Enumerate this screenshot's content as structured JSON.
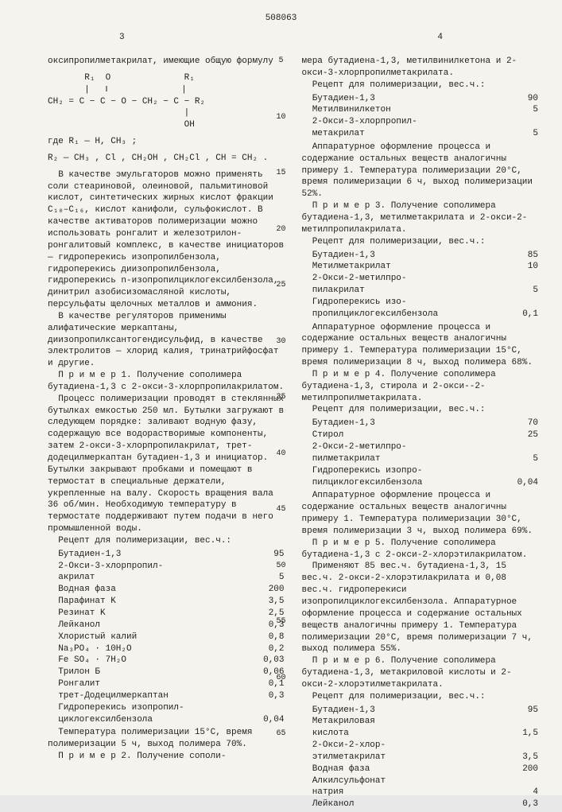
{
  "doc_number": "508063",
  "page_left": "3",
  "page_right": "4",
  "linenums": [
    "5",
    "10",
    "15",
    "20",
    "25",
    "30",
    "35",
    "40",
    "45",
    "50",
    "55",
    "60",
    "65"
  ],
  "left": {
    "p1": "оксипропилметакрилат, имеющие общую формулу",
    "formula1": "       R₁  O              R₁\n       |   ‖              |\nCH₂ = C − C − O − CH₂ − C − R₂\n                          |\n                          OH",
    "formula2": "где R₁ — H, CH₃ ;",
    "formula3": "R₂ — CH₃ , Cl , CH₂OH , CH₂Cl , CH = CH₂ .",
    "p2": "В качестве эмульгаторов можно применять соли стеариновой, олеиновой, пальмитиновой кислот, синтетических жирных кислот фракции C₁₀–C₁₆, кислот канифоли, сульфокислот. В качестве активаторов полимеризации можно использовать ронгалит и железотрилон-ронгалитовый комплекс, в качестве инициаторов — гидроперекись изопропилбензола, гидроперекись диизопропилбензола, гидроперекись n-изопропилциклогексилбензола, динитрил азобисизомасляной кислоты, персульфаты щелочных металлов и аммония.",
    "p3": "В качестве регуляторов применимы алифатические меркаптаны, диизопропилксантогендисульфид, в качестве электролитов — хлорид калия, тринатрийфосфат и другие.",
    "p4": "П р и м е р 1. Получение сополимера бутадиена-1,3 с 2-окси-3-хлорпропилакрилатом.",
    "p5": "Процесс полимеризации проводят в стеклянных бутылках емкостью 250 мл. Бутылки загружают в следующем порядке: заливают водную фазу, содержащую все водорастворимые компоненты, затем 2-окси-3-хлорпропилакрилат, трет-додецилмеркаптан бутадиен-1,3 и инициатор. Бутылки закрывают пробками и помещают в термостат в специальные держатели, укрепленные на валу. Скорость вращения вала 36 об/мин. Необходимую температуру в термостате поддерживают путем подачи в него промышленной воды.",
    "recipe_hdr": "Рецепт для полимеризации, вес.ч.:",
    "recipe1": [
      {
        "l": "Бутадиен-1,3",
        "v": "95"
      },
      {
        "l": "2-Окси-3-хлорпропил-",
        "v": ""
      },
      {
        "l": "акрилат",
        "v": "5"
      },
      {
        "l": "Водная фаза",
        "v": "200"
      },
      {
        "l": "Парафинат K",
        "v": "3,5"
      },
      {
        "l": "Резинат K",
        "v": "2,5"
      },
      {
        "l": "Лейканол",
        "v": "0,3"
      },
      {
        "l": "Хлористый калий",
        "v": "0,8"
      },
      {
        "l": "Na₃PO₄ · 10H₂O",
        "v": "0,2"
      },
      {
        "l": "Fe SO₄ · 7H₂O",
        "v": "0,03"
      },
      {
        "l": "Трилон Б",
        "v": "0,06"
      },
      {
        "l": "Ронгалит",
        "v": "0,1"
      },
      {
        "l": "трет-Додецилмеркаптан",
        "v": "0,3"
      },
      {
        "l": "Гидроперекись изопропил-",
        "v": ""
      },
      {
        "l": "циклогексилбензола",
        "v": "0,04"
      }
    ],
    "p6": "Температура полимеризации 15°C, время полимеризации 5 ч, выход полимера 70%.",
    "p7": "П р и м е р 2. Получение сополи-"
  },
  "right": {
    "p1": "мера бутадиена-1,3, метилвинилкетона и 2-окси-3-хлорпропилметакрилата.",
    "recipe_hdr": "Рецепт для полимеризации, вес.ч.:",
    "recipe2": [
      {
        "l": "Бутадиен-1,3",
        "v": "90"
      },
      {
        "l": "Метилвинилкетон",
        "v": "5"
      },
      {
        "l": "2-Окси-3-хлорпропил-",
        "v": ""
      },
      {
        "l": "метакрилат",
        "v": "5"
      }
    ],
    "p2": "Аппаратурное оформление процесса и содержание остальных веществ аналогичны примеру 1. Температура полимеризации 20°C, время полимеризации 6 ч, выход полимеризации 52%.",
    "p3": "П р и м е р 3. Получение сополимера бутадиена-1,3, метилметакрилата и 2-окси-2-метилпропилакрилата.",
    "recipe3": [
      {
        "l": "Бутадиен-1,3",
        "v": "85"
      },
      {
        "l": "Метилметакрилат",
        "v": "10"
      },
      {
        "l": "2-Окси-2-метилпро-",
        "v": ""
      },
      {
        "l": "пилакрилат",
        "v": "5"
      },
      {
        "l": "Гидроперекись изо-",
        "v": ""
      },
      {
        "l": "пропилциклогексилбензола",
        "v": "0,1"
      }
    ],
    "p4": "Аппаратурное оформление процесса и содержание остальных веществ аналогичны примеру 1. Температура полимеризации 15°C, время полимеризации 8 ч, выход полимера 68%.",
    "p5": "П р и м е р 4. Получение сополимера бутадиена-1,3, стирола и 2-окси--2- метилпропилметакрилата.",
    "recipe4": [
      {
        "l": "Бутадиен-1,3",
        "v": "70"
      },
      {
        "l": "Стирол",
        "v": "25"
      },
      {
        "l": "2-Окси-2-метилпро-",
        "v": ""
      },
      {
        "l": "пилметакрилат",
        "v": "5"
      },
      {
        "l": "Гидроперекись изопро-",
        "v": ""
      },
      {
        "l": "пилциклогексилбензола",
        "v": "0,04"
      }
    ],
    "p6": "Аппаратурное оформление процесса и содержание остальных веществ аналогичны примеру 1. Температура полимеризации 30°C, время полимеризации 3 ч, выход полимера 69%.",
    "p7": "П р и м е р 5. Получение сополимера бутадиена-1,3 с 2-окси-2-хлорэтилакрилатом.",
    "p8": "Применяют 85 вес.ч. бутадиена-1,3, 15 вес.ч. 2-окси-2-хлорэтилакрилата и 0,08 вес.ч. гидроперекиси изопропилциклогексилбензола. Аппаратурное оформление процесса и содержание остальных веществ аналогичны примеру 1. Температура полимеризации 20°C, время полимеризации 7 ч, выход полимера 55%.",
    "p9": "П р и м е р 6. Получение сополимера бутадиена-1,3, метакриловой кислоты и 2-окси-2-хлорэтилметакрилата.",
    "recipe6": [
      {
        "l": "Бутадиен-1,3",
        "v": "95"
      },
      {
        "l": "Метакриловая",
        "v": ""
      },
      {
        "l": "кислота",
        "v": "1,5"
      },
      {
        "l": "2-Окси-2-хлор-",
        "v": ""
      },
      {
        "l": "этилметакрилат",
        "v": "3,5"
      },
      {
        "l": "Водная фаза",
        "v": "200"
      },
      {
        "l": "Алкилсульфонат",
        "v": ""
      },
      {
        "l": "натрия",
        "v": "4"
      },
      {
        "l": "Лейканол",
        "v": "0,3"
      }
    ]
  }
}
